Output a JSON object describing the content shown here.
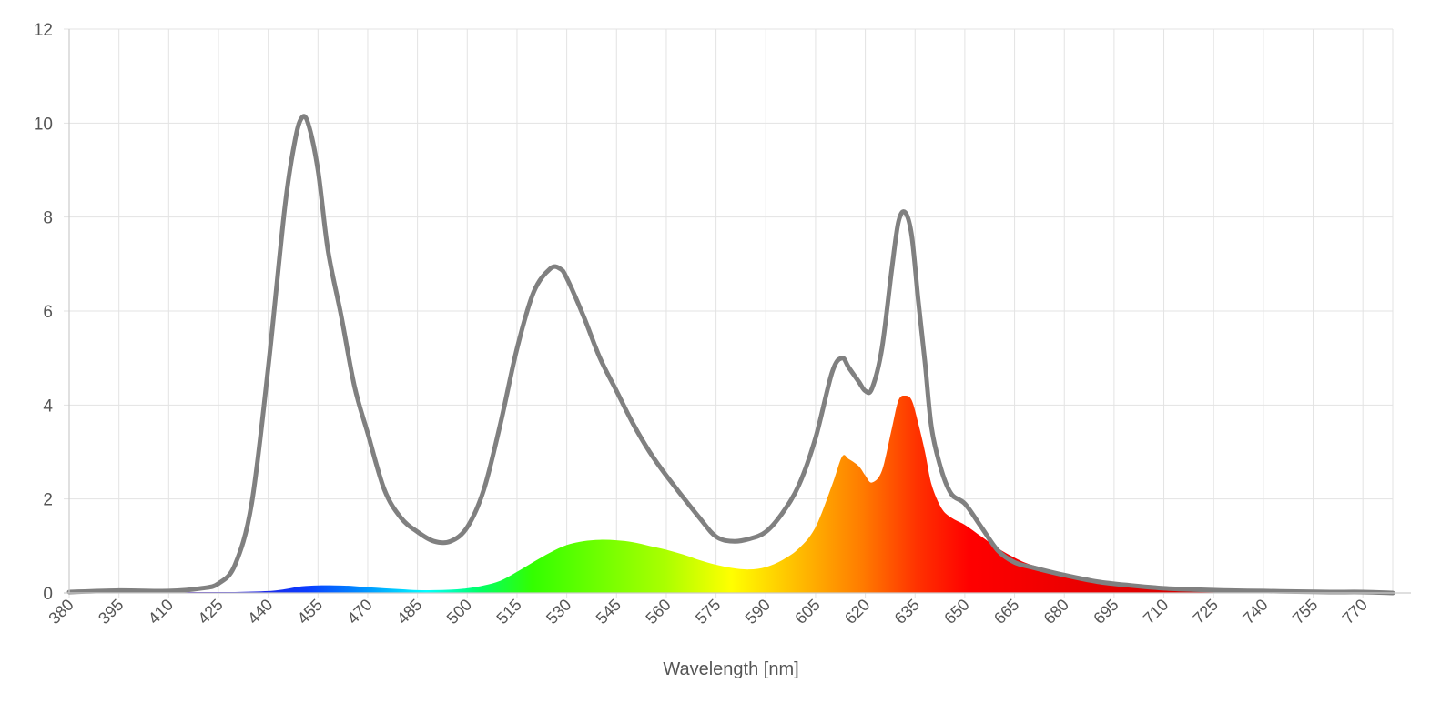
{
  "chart_data": {
    "type": "area",
    "xlabel": "Wavelength [nm]",
    "ylabel": "",
    "xlim": [
      380,
      779
    ],
    "ylim": [
      0,
      12
    ],
    "y_ticks": [
      "0",
      "2",
      "4",
      "6",
      "8",
      "10",
      "12"
    ],
    "x_ticks": [
      "380",
      "395",
      "410",
      "425",
      "440",
      "455",
      "470",
      "485",
      "500",
      "515",
      "530",
      "545",
      "560",
      "575",
      "590",
      "605",
      "620",
      "635",
      "650",
      "665",
      "680",
      "695",
      "710",
      "725",
      "740",
      "755",
      "770"
    ],
    "grid": true,
    "colors": {
      "grid": "#e3e3e3",
      "axis": "#cccccc",
      "line": "#808080"
    },
    "series": [
      {
        "style": "gray-line",
        "x": [
          380,
          395,
          410,
          420,
          425,
          430,
          435,
          440,
          445,
          448,
          450,
          452,
          455,
          458,
          462,
          466,
          470,
          475,
          480,
          485,
          490,
          495,
          500,
          505,
          510,
          515,
          520,
          525,
          528,
          530,
          535,
          540,
          545,
          550,
          555,
          560,
          570,
          575,
          580,
          585,
          590,
          595,
          600,
          605,
          610,
          613,
          615,
          618,
          620,
          622,
          625,
          628,
          630,
          632,
          634,
          636,
          638,
          640,
          643,
          646,
          650,
          655,
          660,
          665,
          670,
          680,
          690,
          700,
          710,
          720,
          730,
          740,
          750,
          760,
          770,
          779
        ],
        "values": [
          0.02,
          0.05,
          0.04,
          0.1,
          0.2,
          0.6,
          1.9,
          4.8,
          8.2,
          9.6,
          10.1,
          10.0,
          9.0,
          7.3,
          5.9,
          4.4,
          3.4,
          2.2,
          1.6,
          1.3,
          1.1,
          1.1,
          1.4,
          2.2,
          3.6,
          5.2,
          6.4,
          6.9,
          6.9,
          6.7,
          5.9,
          5.0,
          4.3,
          3.6,
          3.0,
          2.5,
          1.6,
          1.2,
          1.1,
          1.15,
          1.3,
          1.7,
          2.3,
          3.3,
          4.7,
          5.0,
          4.8,
          4.5,
          4.3,
          4.35,
          5.2,
          6.9,
          7.9,
          8.1,
          7.6,
          6.2,
          4.9,
          3.5,
          2.6,
          2.1,
          1.9,
          1.4,
          0.9,
          0.65,
          0.55,
          0.38,
          0.24,
          0.16,
          0.1,
          0.07,
          0.05,
          0.04,
          0.03,
          0.02,
          0.02,
          0.0
        ]
      },
      {
        "style": "spectrum-fill",
        "x": [
          380,
          395,
          410,
          420,
          430,
          440,
          445,
          450,
          455,
          460,
          465,
          470,
          475,
          480,
          485,
          490,
          495,
          500,
          505,
          510,
          515,
          520,
          525,
          530,
          535,
          540,
          545,
          550,
          555,
          560,
          565,
          570,
          575,
          580,
          585,
          590,
          595,
          600,
          605,
          610,
          613,
          615,
          618,
          620,
          622,
          625,
          628,
          630,
          632,
          634,
          636,
          638,
          640,
          643,
          646,
          650,
          655,
          660,
          665,
          670,
          680,
          690,
          700,
          710,
          720,
          730,
          740,
          750,
          760,
          770,
          779
        ],
        "values": [
          0.01,
          0.02,
          0.02,
          0.02,
          0.02,
          0.04,
          0.08,
          0.14,
          0.16,
          0.16,
          0.15,
          0.12,
          0.1,
          0.08,
          0.06,
          0.06,
          0.07,
          0.1,
          0.16,
          0.26,
          0.45,
          0.66,
          0.86,
          1.02,
          1.1,
          1.13,
          1.12,
          1.08,
          1.0,
          0.92,
          0.82,
          0.7,
          0.6,
          0.53,
          0.5,
          0.55,
          0.7,
          0.95,
          1.4,
          2.3,
          2.9,
          2.85,
          2.7,
          2.5,
          2.35,
          2.6,
          3.5,
          4.1,
          4.2,
          4.1,
          3.6,
          3.0,
          2.3,
          1.8,
          1.6,
          1.45,
          1.2,
          0.95,
          0.75,
          0.6,
          0.42,
          0.28,
          0.2,
          0.14,
          0.1,
          0.07,
          0.05,
          0.04,
          0.03,
          0.03,
          0.0
        ]
      }
    ]
  }
}
